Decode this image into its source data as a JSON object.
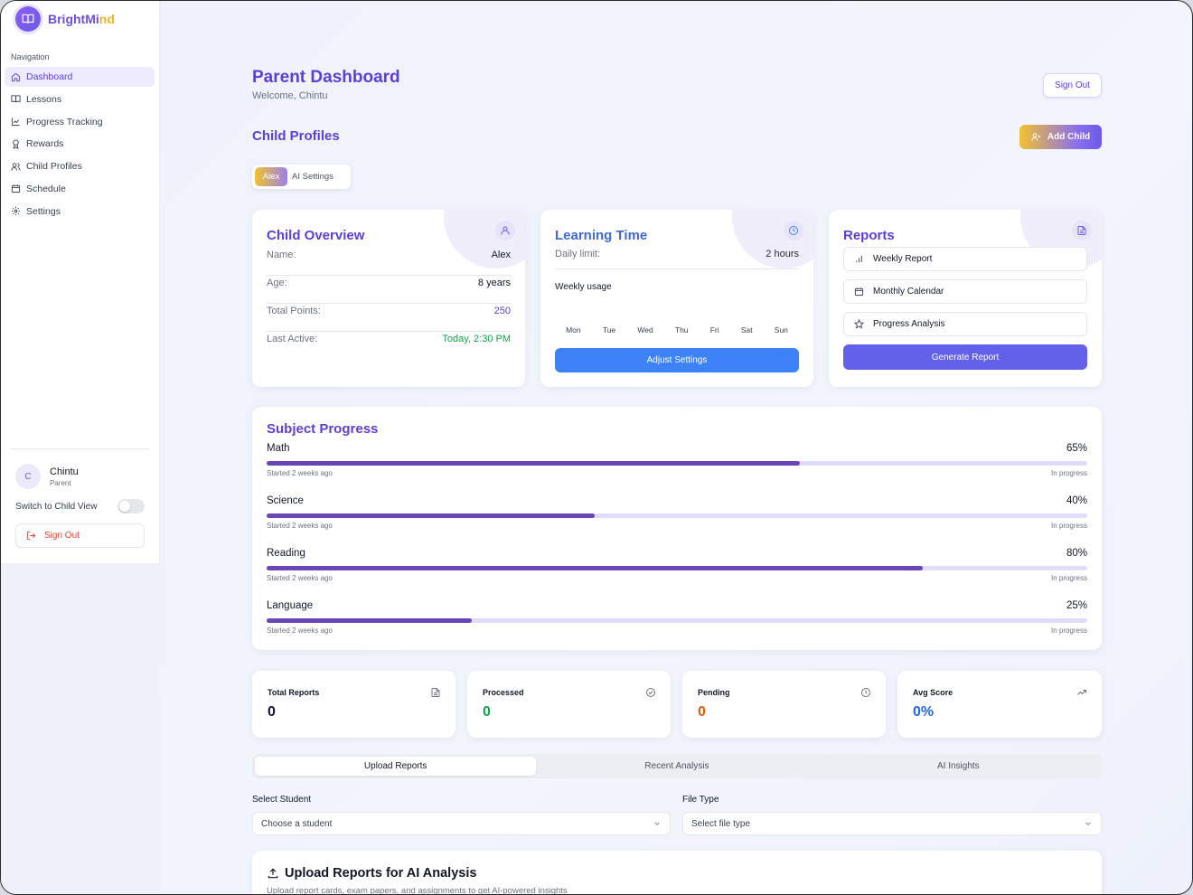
{
  "brand": {
    "name_main": "BrightMi",
    "name_accent": "nd"
  },
  "sidebar": {
    "heading": "Navigation",
    "items": [
      {
        "label": "Dashboard",
        "icon": "home-icon",
        "active": true
      },
      {
        "label": "Lessons",
        "icon": "book-icon"
      },
      {
        "label": "Progress Tracking",
        "icon": "chart-line-icon"
      },
      {
        "label": "Rewards",
        "icon": "award-icon"
      },
      {
        "label": "Child Profiles",
        "icon": "users-icon"
      },
      {
        "label": "Schedule",
        "icon": "calendar-icon"
      },
      {
        "label": "Settings",
        "icon": "gear-icon"
      }
    ],
    "user": {
      "initial": "C",
      "name": "Chintu",
      "role": "Parent"
    },
    "switch_label": "Switch to Child View",
    "signout_label": "Sign Out"
  },
  "header": {
    "title": "Parent Dashboard",
    "welcome": "Welcome, Chintu",
    "signout_label": "Sign Out"
  },
  "child_profiles": {
    "title": "Child Profiles",
    "add_label": "Add Child",
    "tabs": [
      "Alex",
      "AI Settings"
    ]
  },
  "overview": {
    "title": "Child Overview",
    "rows": [
      {
        "key": "Name:",
        "value": "Alex"
      },
      {
        "key": "Age:",
        "value": "8 years"
      },
      {
        "key": "Total Points:",
        "value": "250"
      },
      {
        "key": "Last Active:",
        "value": "Today, 2:30 PM"
      }
    ]
  },
  "learning_time": {
    "title": "Learning Time",
    "limit_key": "Daily limit:",
    "limit_value": "2 hours",
    "weekly_label": "Weekly usage",
    "days": [
      "Mon",
      "Tue",
      "Wed",
      "Thu",
      "Fri",
      "Sat",
      "Sun"
    ],
    "button_label": "Adjust Settings"
  },
  "reports": {
    "title": "Reports",
    "items": [
      {
        "label": "Weekly Report",
        "icon": "bar-chart-icon"
      },
      {
        "label": "Monthly Calendar",
        "icon": "calendar-icon"
      },
      {
        "label": "Progress Analysis",
        "icon": "star-icon"
      }
    ],
    "button_label": "Generate Report"
  },
  "subject_progress": {
    "title": "Subject Progress",
    "subjects": [
      {
        "name": "Math",
        "percent_label": "65%",
        "percent": 65,
        "started": "Started 2 weeks ago",
        "status": "In progress"
      },
      {
        "name": "Science",
        "percent_label": "40%",
        "percent": 40,
        "started": "Started 2 weeks ago",
        "status": "In progress"
      },
      {
        "name": "Reading",
        "percent_label": "80%",
        "percent": 80,
        "started": "Started 2 weeks ago",
        "status": "In progress"
      },
      {
        "name": "Language",
        "percent_label": "25%",
        "percent": 25,
        "started": "Started 2 weeks ago",
        "status": "In progress"
      }
    ]
  },
  "stats": [
    {
      "label": "Total Reports",
      "value": "0",
      "color": "#111827",
      "icon": "file-icon"
    },
    {
      "label": "Processed",
      "value": "0",
      "color": "#16a34a",
      "icon": "check-circle-icon"
    },
    {
      "label": "Pending",
      "value": "0",
      "color": "#ea580c",
      "icon": "clock-icon"
    },
    {
      "label": "Avg Score",
      "value": "0%",
      "color": "#2563eb",
      "icon": "trending-up-icon"
    }
  ],
  "analysis_tabs": [
    "Upload Reports",
    "Recent Analysis",
    "AI Insights"
  ],
  "form": {
    "student_label": "Select Student",
    "student_placeholder": "Choose a student",
    "filetype_label": "File Type",
    "filetype_placeholder": "Select file type"
  },
  "upload": {
    "title": "Upload Reports for AI Analysis",
    "subtitle": "Upload report cards, exam papers, and assignments to get AI-powered insights"
  },
  "colors": {
    "accent": "#5b3fd6",
    "blue": "#3d82f6",
    "violet": "#6360ea",
    "green": "#16a34a",
    "gold": "#f2c230"
  }
}
